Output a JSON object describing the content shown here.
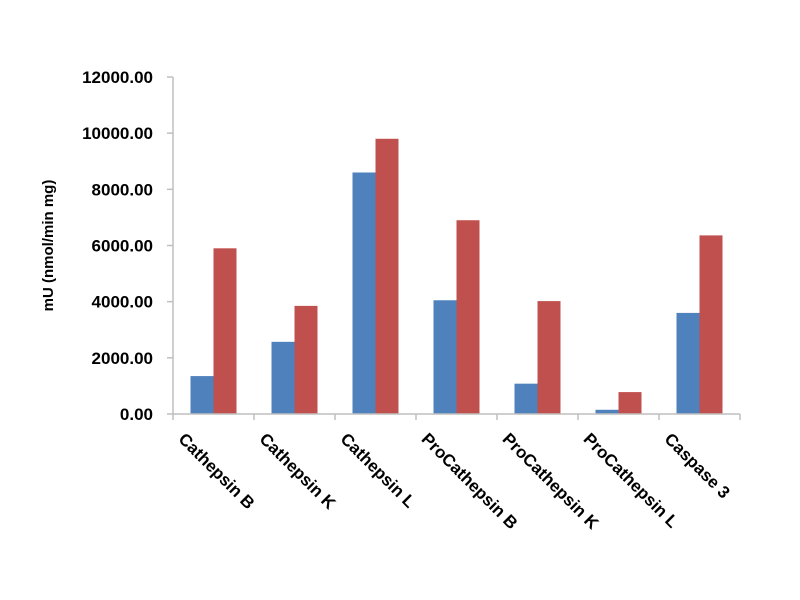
{
  "chart_data": {
    "type": "bar",
    "title": "",
    "xlabel": "",
    "ylabel": "mU (nmol/min mg)",
    "categories": [
      "Cathepsin B",
      "Cathepsin K",
      "Cathepsin L",
      "ProCathepsin B",
      "ProCathepsin K",
      "ProCathepsin L",
      "Caspase 3"
    ],
    "series": [
      {
        "color": "#4f81bd",
        "values": [
          1350,
          2570,
          8600,
          4050,
          1080,
          150,
          3600
        ]
      },
      {
        "color": "#c0504d",
        "values": [
          5900,
          3850,
          9800,
          6900,
          4020,
          780,
          6360
        ]
      }
    ],
    "ylim": [
      0,
      12000
    ],
    "yticks": [
      0,
      2000,
      4000,
      6000,
      8000,
      10000,
      12000
    ],
    "ytick_labels": [
      "0.00",
      "2000.00",
      "4000.00",
      "6000.00",
      "8000.00",
      "10000.00",
      "12000.00"
    ],
    "grid": false,
    "legend": "none"
  }
}
